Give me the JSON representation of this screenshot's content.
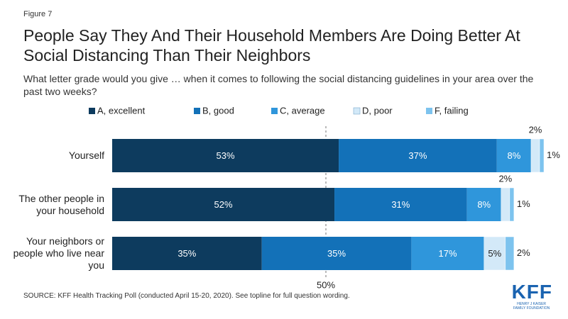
{
  "chart_data": {
    "type": "stacked_bar_horizontal",
    "figure_label": "Figure 7",
    "title": "People Say They And Their Household Members Are Doing Better At Social Distancing Than Their Neighbors",
    "subtitle": "What letter grade would you give … when it comes to following the social distancing guidelines in your area over the past two weeks?",
    "categories": [
      "Yourself",
      "The other people in your household",
      "Your neighbors or people who live near you"
    ],
    "series": [
      {
        "name": "A, excellent",
        "color": "#0d3b5e",
        "label_color": "#ffffff",
        "values": [
          53,
          52,
          35
        ],
        "value_labels": [
          "53%",
          "52%",
          "35%"
        ]
      },
      {
        "name": "B, good",
        "color": "#1371b8",
        "label_color": "#ffffff",
        "values": [
          37,
          31,
          35
        ],
        "value_labels": [
          "37%",
          "31%",
          "35%"
        ]
      },
      {
        "name": "C, average",
        "color": "#2f96db",
        "label_color": "#ffffff",
        "values": [
          8,
          8,
          17
        ],
        "value_labels": [
          "8%",
          "8%",
          "17%"
        ]
      },
      {
        "name": "D, poor",
        "color": "#d3e9f8",
        "label_color": "#222222",
        "values": [
          2,
          2,
          5
        ],
        "value_labels": [
          "2%",
          "2%",
          "5%"
        ]
      },
      {
        "name": "F, failing",
        "color": "#7dc3ee",
        "label_color": "#222222",
        "values": [
          1,
          1,
          2
        ],
        "value_labels": [
          "1%",
          "1%",
          "2%"
        ]
      }
    ],
    "xlim": [
      0,
      100
    ],
    "reference_line": {
      "value": 50,
      "label": "50%"
    },
    "source": "SOURCE: KFF Health Tracking Poll (conducted April 15-20, 2020). See topline for full question wording.",
    "logo": {
      "text": "KFF",
      "subtext": "HENRY J KAISER FAMILY FOUNDATION"
    }
  }
}
